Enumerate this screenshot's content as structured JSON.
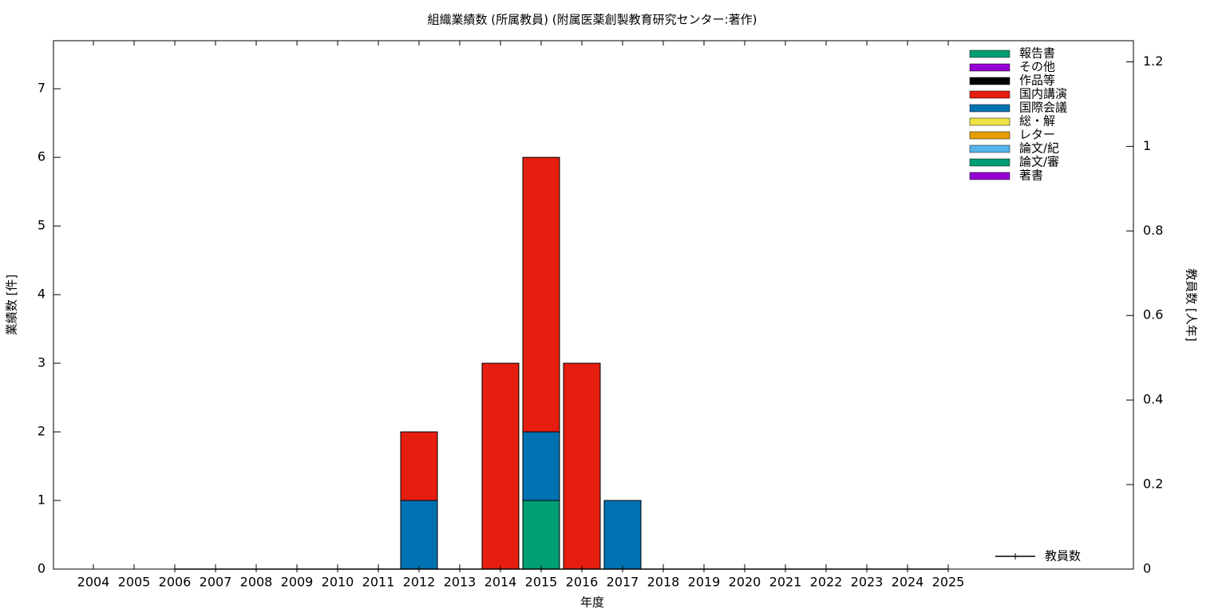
{
  "chart_data": {
    "type": "bar",
    "stacked": true,
    "title": "組織業績数 (所属教員) (附属医薬創製教育研究センター:著作)",
    "x_label": "年度",
    "y_label": "業績数 [件]",
    "y2_label": "教員数 [人年]",
    "categories": [
      "2004",
      "2005",
      "2006",
      "2007",
      "2008",
      "2009",
      "2010",
      "2011",
      "2012",
      "2013",
      "2014",
      "2015",
      "2016",
      "2017",
      "2018",
      "2019",
      "2020",
      "2021",
      "2022",
      "2023",
      "2024",
      "2025"
    ],
    "ylim": [
      0,
      7.7
    ],
    "yticks": [
      0,
      1,
      2,
      3,
      4,
      5,
      6,
      7
    ],
    "y2lim": [
      0,
      1.25
    ],
    "y2ticks": [
      0,
      0.2,
      0.4,
      0.6,
      0.8,
      1,
      1.2
    ],
    "legend": "top-right",
    "series": [
      {
        "name": "報告書",
        "color": "#009e73",
        "values": [
          0,
          0,
          0,
          0,
          0,
          0,
          0,
          0,
          0,
          0,
          0,
          0,
          0,
          0,
          0,
          0,
          0,
          0,
          0,
          0,
          0,
          0
        ]
      },
      {
        "name": "その他",
        "color": "#9400d3",
        "values": [
          0,
          0,
          0,
          0,
          0,
          0,
          0,
          0,
          0,
          0,
          0,
          0,
          0,
          0,
          0,
          0,
          0,
          0,
          0,
          0,
          0,
          0
        ]
      },
      {
        "name": "作品等",
        "color": "#000000",
        "values": [
          0,
          0,
          0,
          0,
          0,
          0,
          0,
          0,
          0,
          0,
          0,
          0,
          0,
          0,
          0,
          0,
          0,
          0,
          0,
          0,
          0,
          0
        ]
      },
      {
        "name": "国内講演",
        "color": "#e51e10",
        "values": [
          0,
          0,
          0,
          0,
          0,
          0,
          0,
          0,
          1,
          0,
          3,
          4,
          3,
          0,
          0,
          0,
          0,
          0,
          0,
          0,
          0,
          0
        ]
      },
      {
        "name": "国際会議",
        "color": "#0072b2",
        "values": [
          0,
          0,
          0,
          0,
          0,
          0,
          0,
          0,
          1,
          0,
          0,
          1,
          0,
          1,
          0,
          0,
          0,
          0,
          0,
          0,
          0,
          0
        ]
      },
      {
        "name": "総・解",
        "color": "#f0e442",
        "values": [
          0,
          0,
          0,
          0,
          0,
          0,
          0,
          0,
          0,
          0,
          0,
          0,
          0,
          0,
          0,
          0,
          0,
          0,
          0,
          0,
          0,
          0
        ]
      },
      {
        "name": "レター",
        "color": "#e69f00",
        "values": [
          0,
          0,
          0,
          0,
          0,
          0,
          0,
          0,
          0,
          0,
          0,
          0,
          0,
          0,
          0,
          0,
          0,
          0,
          0,
          0,
          0,
          0
        ]
      },
      {
        "name": "論文/紀",
        "color": "#56b4e9",
        "values": [
          0,
          0,
          0,
          0,
          0,
          0,
          0,
          0,
          0,
          0,
          0,
          0,
          0,
          0,
          0,
          0,
          0,
          0,
          0,
          0,
          0,
          0
        ]
      },
      {
        "name": "論文/審",
        "color": "#009e73",
        "values": [
          0,
          0,
          0,
          0,
          0,
          0,
          0,
          0,
          0,
          0,
          0,
          1,
          0,
          0,
          0,
          0,
          0,
          0,
          0,
          0,
          0,
          0
        ]
      },
      {
        "name": "著書",
        "color": "#9400d3",
        "values": [
          0,
          0,
          0,
          0,
          0,
          0,
          0,
          0,
          0,
          0,
          0,
          0,
          0,
          0,
          0,
          0,
          0,
          0,
          0,
          0,
          0,
          0
        ]
      },
      {
        "name": "教員数",
        "type": "line",
        "axis": "y2",
        "color": "#000000",
        "values": [
          null,
          null,
          0,
          0,
          0,
          0,
          0,
          0,
          0,
          0,
          0,
          0,
          0,
          0,
          0,
          0,
          0,
          0,
          0,
          0,
          0,
          0
        ]
      }
    ]
  }
}
